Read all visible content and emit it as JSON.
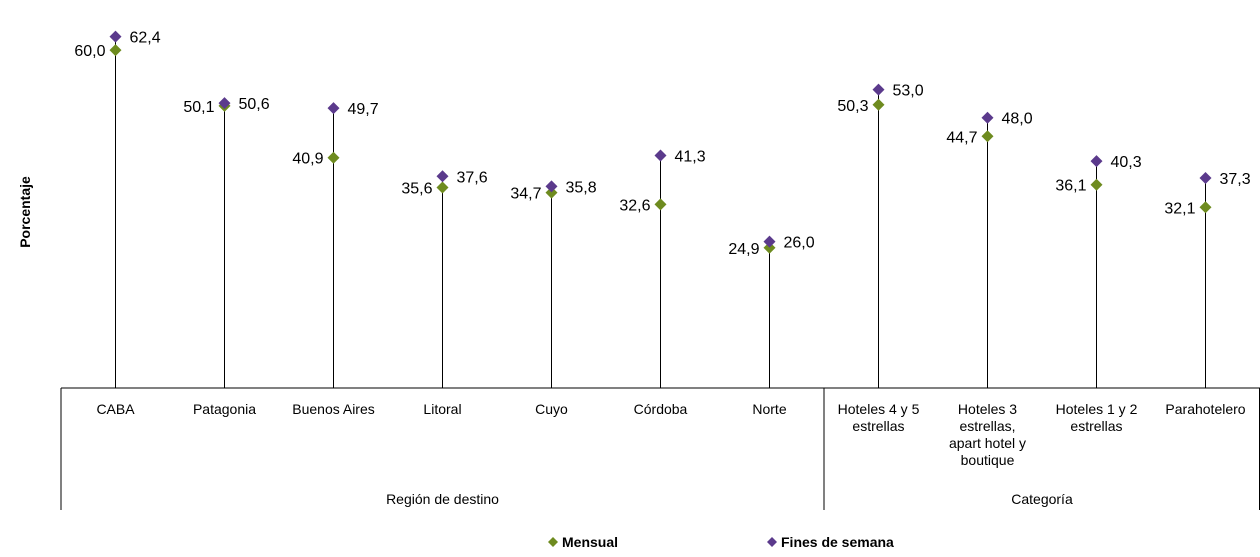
{
  "chart_data": {
    "type": "scatter",
    "title": "",
    "xlabel": "",
    "ylabel": "Porcentaje",
    "ylim": [
      0,
      65
    ],
    "grid": false,
    "legend_position": "bottom-center",
    "groups": [
      {
        "label": "Región de destino",
        "categories": 7
      },
      {
        "label": "Categoría",
        "categories": 4
      }
    ],
    "categories": [
      [
        "CABA"
      ],
      [
        "Patagonia"
      ],
      [
        "Buenos Aires"
      ],
      [
        "Litoral"
      ],
      [
        "Cuyo"
      ],
      [
        "Córdoba"
      ],
      [
        "Norte"
      ],
      [
        "Hoteles 4 y 5",
        "estrellas"
      ],
      [
        "Hoteles 3",
        "estrellas,",
        "apart hotel y",
        "boutique"
      ],
      [
        "Hoteles 1 y 2",
        "estrellas"
      ],
      [
        "Parahotelero"
      ]
    ],
    "series": [
      {
        "name": "Mensual",
        "color": "#6e8b1f",
        "marker": "diamond",
        "values": [
          60.0,
          50.1,
          40.9,
          35.6,
          34.7,
          32.6,
          24.9,
          50.3,
          44.7,
          36.1,
          32.1
        ],
        "labels": [
          "60,0",
          "50,1",
          "40,9",
          "35,6",
          "34,7",
          "32,6",
          "24,9",
          "50,3",
          "44,7",
          "36,1",
          "32,1"
        ]
      },
      {
        "name": "Fines de semana",
        "color": "#5b3a8c",
        "marker": "diamond",
        "values": [
          62.4,
          50.6,
          49.7,
          37.6,
          35.8,
          41.3,
          26.0,
          53.0,
          48.0,
          40.3,
          37.3
        ],
        "labels": [
          "62,4",
          "50,6",
          "49,7",
          "37,6",
          "35,8",
          "41,3",
          "26,0",
          "53,0",
          "48,0",
          "40,3",
          "37,3"
        ]
      }
    ]
  }
}
